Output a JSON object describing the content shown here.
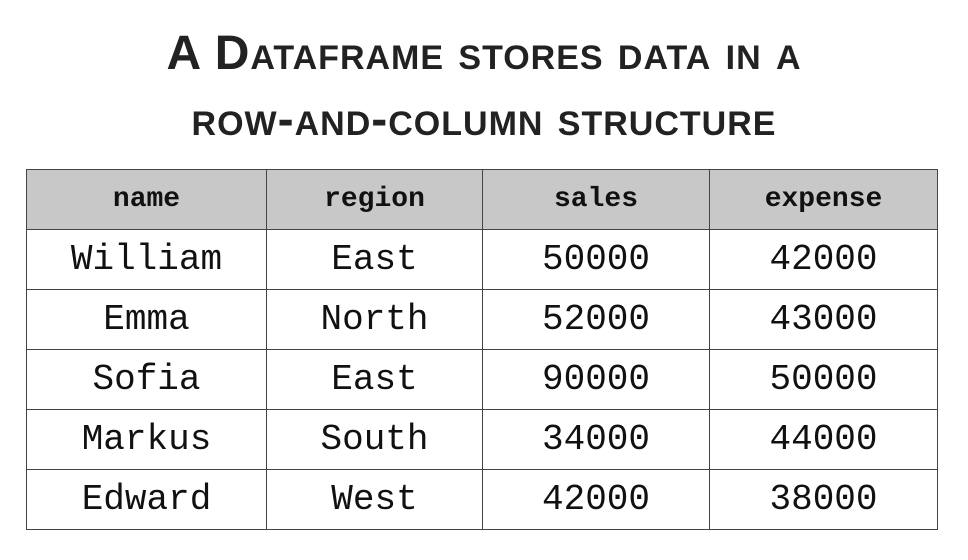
{
  "title": {
    "line1": "A Dataframe stores data in a",
    "line2": "row-and-column structure"
  },
  "table": {
    "columns": [
      "name",
      "region",
      "sales",
      "expense"
    ],
    "rows": [
      [
        "William",
        "East",
        "50000",
        "42000"
      ],
      [
        "Emma",
        "North",
        "52000",
        "43000"
      ],
      [
        "Sofia",
        "East",
        "90000",
        "50000"
      ],
      [
        "Markus",
        "South",
        "34000",
        "44000"
      ],
      [
        "Edward",
        "West",
        "42000",
        "38000"
      ]
    ]
  },
  "colors": {
    "header_background": "#c8c8c8",
    "border": "#444444",
    "text": "#111111"
  }
}
